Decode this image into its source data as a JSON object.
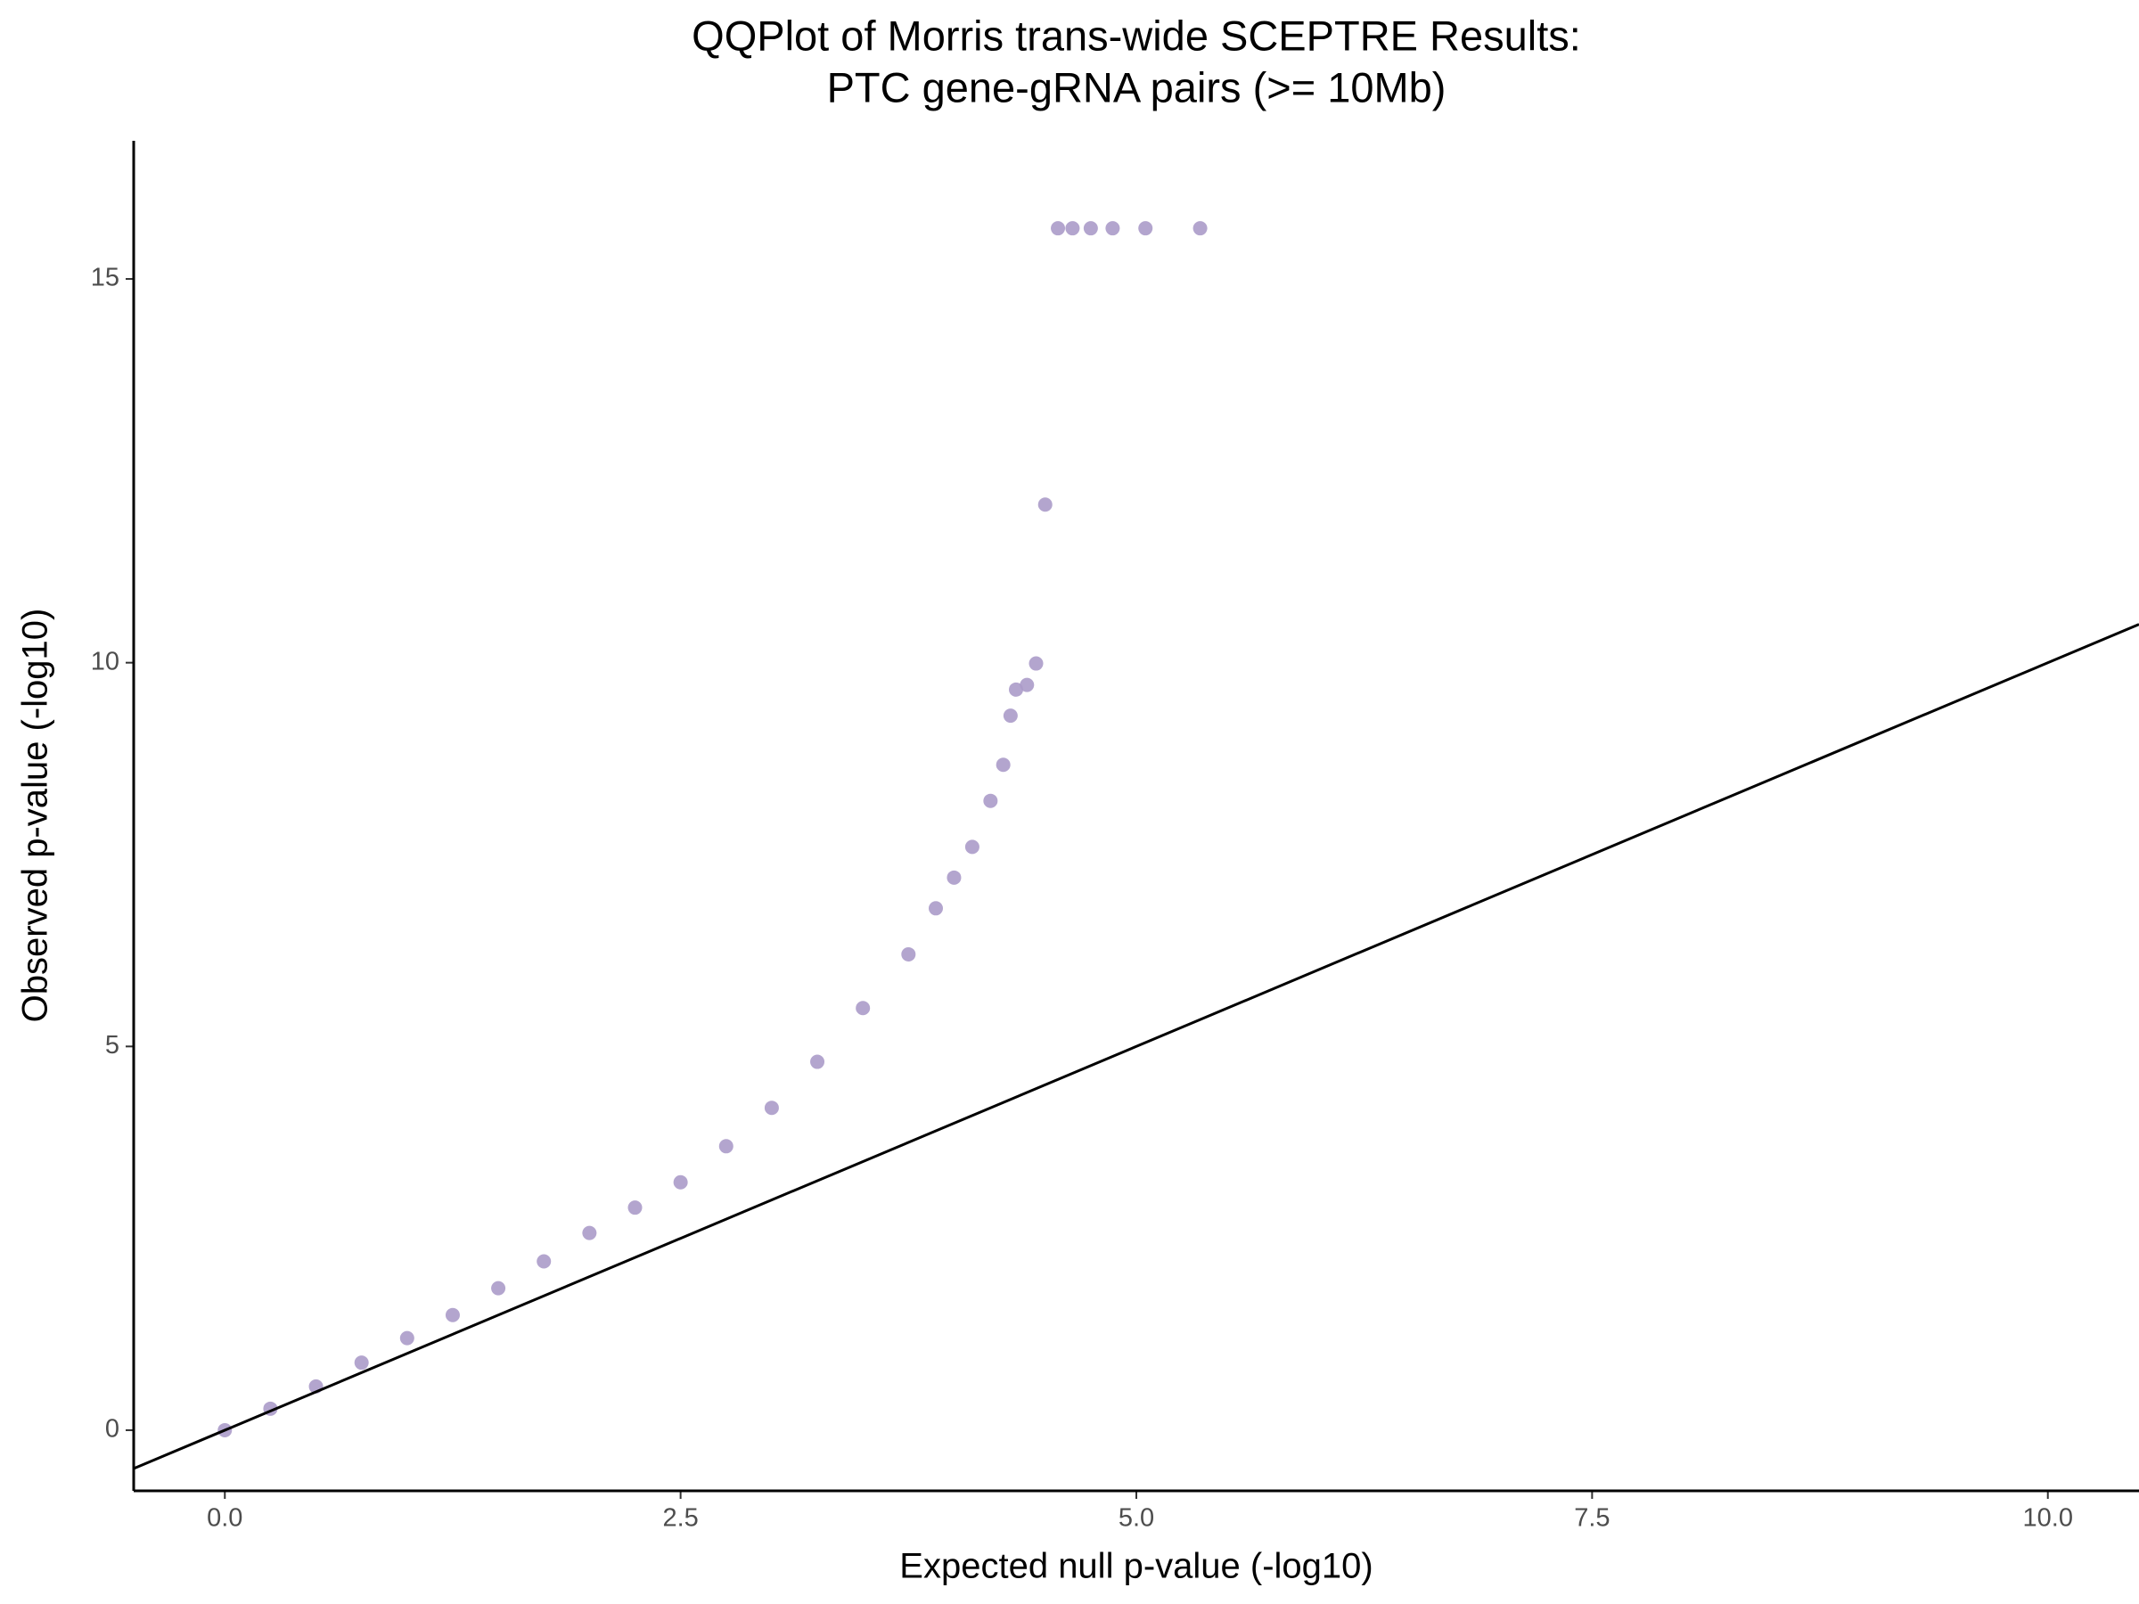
{
  "chart_data": {
    "type": "scatter",
    "title": [
      "QQPlot of Morris trans-wide SCEPTRE Results:",
      "PTC gene-gRNA pairs (>= 10Mb)"
    ],
    "x_label": "Expected null p-value (-log10)",
    "y_label": "Observed p-value (-log10)",
    "color": "#ab9bc9",
    "series": [
      {
        "x": [
          0,
          0.25,
          0.5,
          0.75,
          1.0,
          1.25,
          1.5,
          1.75,
          2.0,
          2.25,
          2.5,
          2.75,
          3.0,
          3.25,
          3.5,
          3.75,
          3.9,
          4.0,
          4.1,
          4.2,
          4.27,
          4.31,
          4.34,
          4.4,
          4.45,
          4.5,
          4.57,
          4.65,
          4.75,
          4.87,
          5.05,
          5.35
        ],
        "values": [
          0,
          0.28,
          0.57,
          0.88,
          1.2,
          1.5,
          1.85,
          2.2,
          2.57,
          2.9,
          3.23,
          3.7,
          4.2,
          4.8,
          5.5,
          6.2,
          6.8,
          7.2,
          7.6,
          8.2,
          8.67,
          9.31,
          9.65,
          9.71,
          9.99,
          12.06,
          15.66,
          15.66,
          15.66,
          15.66,
          15.66,
          15.66
        ]
      }
    ],
    "abline": {
      "slope": 1,
      "intercept": 0
    },
    "xlim": [
      -0.5,
      10.5
    ],
    "ylim": [
      -0.79,
      16.8
    ],
    "xticks": [
      {
        "value": 0,
        "label": "0.0"
      },
      2.5,
      {
        "value": 5,
        "label": "5.0"
      },
      7.5,
      {
        "value": 10,
        "label": "10.0"
      }
    ],
    "yticks": [
      0,
      5,
      10,
      15
    ],
    "grid": false
  }
}
